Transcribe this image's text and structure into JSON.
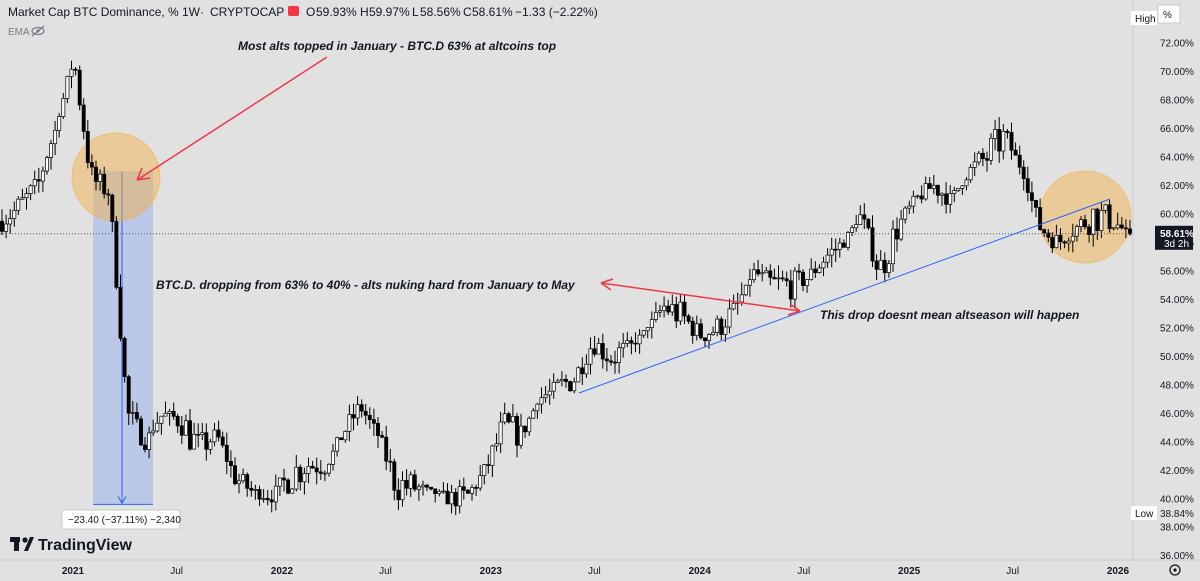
{
  "header": {
    "title": "Market Cap BTC Dominance, %",
    "interval": "1W",
    "source": "CRYPTOCAP",
    "separator": "·",
    "ohlc": {
      "open_label": "O",
      "open": "59.93%",
      "high_label": "H",
      "high": "59.97%",
      "low_label": "L",
      "low": "58.56%",
      "close_label": "C",
      "close": "58.61%",
      "change": "−1.33 (−2.22%)"
    },
    "indicator": "EMA",
    "icons": [
      "flag-icon",
      "eye-icon"
    ]
  },
  "brand": {
    "name": "TradingView",
    "logo_text": "TV"
  },
  "price_axis": {
    "unit": "%",
    "high_label": "High",
    "low_label": "Low",
    "low_value": "38.84%",
    "current_price": "58.61%",
    "countdown": "3d 2h",
    "ticks": [
      "72.00%",
      "70.00%",
      "68.00%",
      "66.00%",
      "64.00%",
      "62.00%",
      "60.00%",
      "58.00%",
      "56.00%",
      "54.00%",
      "52.00%",
      "50.00%",
      "48.00%",
      "46.00%",
      "44.00%",
      "42.00%",
      "40.00%",
      "38.00%",
      "36.00%"
    ],
    "settings_icon": "gear-icon"
  },
  "time_axis": {
    "labels": [
      "2021",
      "Jul",
      "2022",
      "Jul",
      "2023",
      "Jul",
      "2024",
      "Jul",
      "2025",
      "Jul",
      "2026"
    ]
  },
  "measure": {
    "label": "−23.40 (−37.11%) −2,340",
    "from": 63.0,
    "to": 39.6
  },
  "annotations": [
    "Most alts topped in January - BTC.D 63% at altcoins top",
    "BTC.D. dropping from 63% to 40% - alts nuking hard from January to May",
    "This drop doesnt mean altseason will happen"
  ],
  "colors": {
    "background": "#e1e1e1",
    "up": "#ffffff",
    "down": "#000000",
    "arrow": "#f23645",
    "trendline": "#2962ff",
    "highlight": "#f5b041",
    "measure": "#2962ff"
  },
  "chart_data": {
    "type": "candlestick",
    "title": "Market Cap BTC Dominance, %",
    "interval": "1W",
    "ylabel": "%",
    "ylim": [
      35.5,
      73.8
    ],
    "x": [
      "2020-10",
      "2020-11",
      "2020-12",
      "2021-01",
      "2021-02",
      "2021-03",
      "2021-04",
      "2021-05",
      "2021-06",
      "2021-07",
      "2021-08",
      "2021-09",
      "2021-10",
      "2021-11",
      "2021-12",
      "2022-01",
      "2022-02",
      "2022-03",
      "2022-04",
      "2022-05",
      "2022-06",
      "2022-07",
      "2022-08",
      "2022-09",
      "2022-10",
      "2022-11",
      "2022-12",
      "2023-01",
      "2023-02",
      "2023-03",
      "2023-04",
      "2023-05",
      "2023-06",
      "2023-07",
      "2023-08",
      "2023-09",
      "2023-10",
      "2023-11",
      "2023-12",
      "2024-01",
      "2024-02",
      "2024-03",
      "2024-04",
      "2024-05",
      "2024-06",
      "2024-07",
      "2024-08",
      "2024-09",
      "2024-10",
      "2024-11",
      "2024-12",
      "2025-01",
      "2025-02",
      "2025-03",
      "2025-04",
      "2025-05",
      "2025-06",
      "2025-07",
      "2025-08",
      "2025-09",
      "2025-10",
      "2025-11",
      "2025-12",
      "2026-01"
    ],
    "close_path": [
      59.5,
      60.5,
      62.0,
      66.0,
      71.0,
      62.5,
      61.5,
      46.0,
      44.0,
      46.0,
      45.5,
      43.5,
      44.5,
      41.5,
      40.5,
      40.0,
      41.5,
      42.5,
      42.0,
      44.5,
      46.5,
      44.5,
      41.0,
      40.8,
      40.5,
      40.0,
      40.2,
      42.0,
      45.0,
      44.5,
      47.0,
      47.8,
      48.5,
      51.0,
      50.0,
      50.5,
      52.0,
      53.5,
      52.8,
      51.5,
      52.0,
      53.5,
      56.0,
      55.0,
      55.0,
      55.5,
      57.0,
      58.0,
      60.0,
      56.0,
      59.0,
      61.0,
      62.0,
      61.0,
      63.0,
      64.0,
      65.5,
      63.0,
      59.0,
      58.0,
      59.0,
      60.0,
      59.5,
      58.61
    ]
  }
}
